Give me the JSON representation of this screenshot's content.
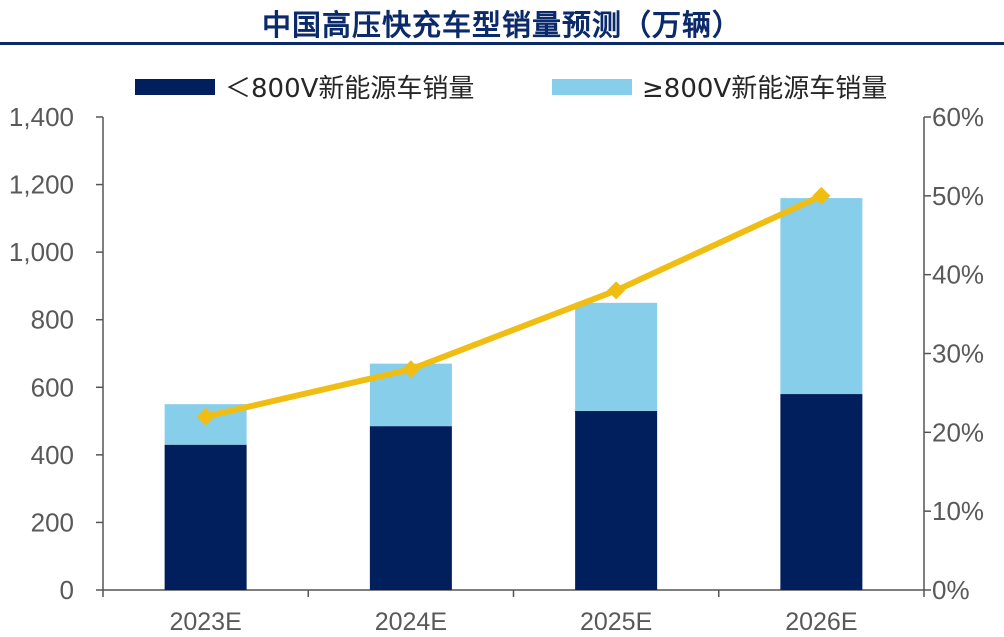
{
  "title": "中国高压快充车型销量预测（万辆）",
  "colors": {
    "title": "#0b2a6b",
    "below800": "#001f5c",
    "above800": "#87ceeb",
    "line": "#f0be12",
    "axis": "#555555",
    "tick": "#595959"
  },
  "legend": [
    {
      "label": "＜800V新能源车销量",
      "color": "#001f5c"
    },
    {
      "label": "≥800V新能源车销量",
      "color": "#87ceeb"
    }
  ],
  "chart_data": {
    "type": "bar",
    "stacked": true,
    "categories": [
      "2023E",
      "2024E",
      "2025E",
      "2026E"
    ],
    "series": [
      {
        "name": "＜800V新能源车销量",
        "values": [
          430,
          485,
          530,
          580
        ],
        "axis": "left"
      },
      {
        "name": "≥800V新能源车销量",
        "values": [
          120,
          185,
          320,
          580
        ],
        "axis": "left"
      },
      {
        "name": "",
        "type": "line",
        "values": [
          22,
          28,
          38,
          50
        ],
        "axis": "right"
      }
    ],
    "ylim": [
      0,
      1400
    ],
    "yticks": [
      "0",
      "200",
      "400",
      "600",
      "800",
      "1,000",
      "1,200",
      "1,400"
    ],
    "y2lim": [
      0,
      60
    ],
    "y2ticks": [
      "0%",
      "10%",
      "20%",
      "30%",
      "40%",
      "50%",
      "60%"
    ],
    "legend_position": "top"
  }
}
